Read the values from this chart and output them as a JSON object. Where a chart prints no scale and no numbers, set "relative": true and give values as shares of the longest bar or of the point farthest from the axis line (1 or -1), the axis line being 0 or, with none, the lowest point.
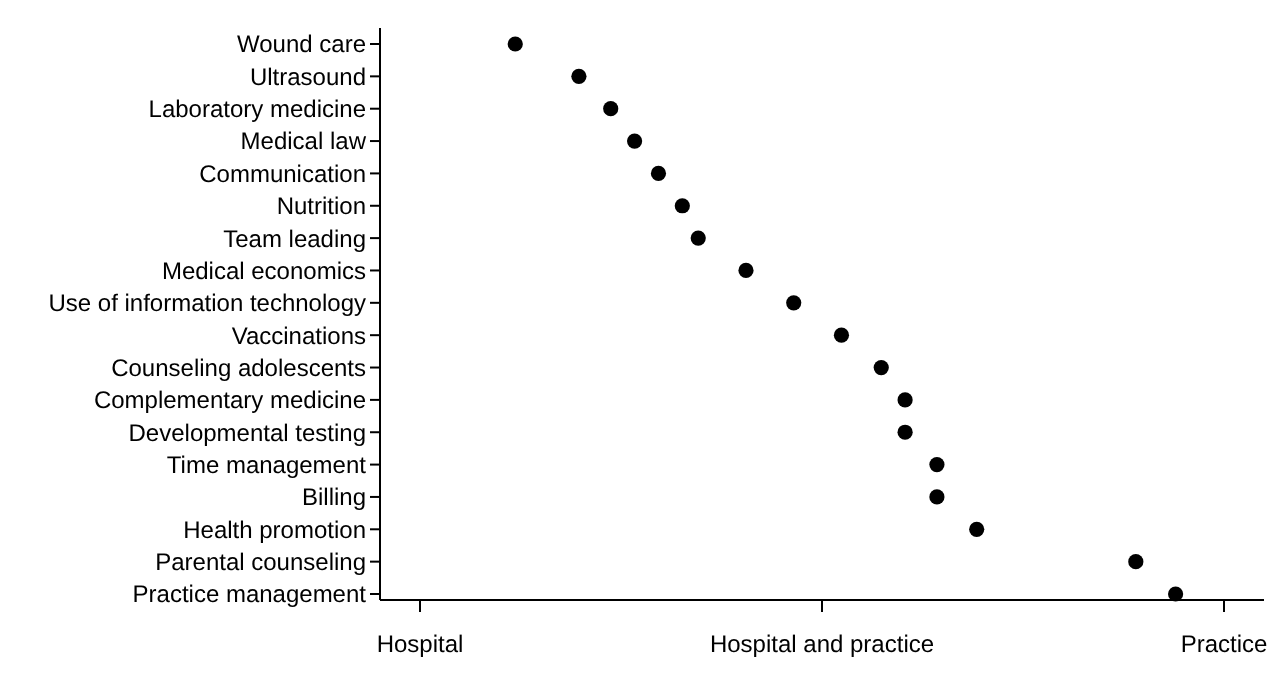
{
  "chart_data": {
    "type": "scatter",
    "orientation": "horizontal",
    "relative": true,
    "categories": [
      "Wound care",
      "Ultrasound",
      "Laboratory medicine",
      "Medical law",
      "Communication",
      "Nutrition",
      "Team leading",
      "Medical economics",
      "Use of information technology",
      "Vaccinations",
      "Counseling adolescents",
      "Complementary medicine",
      "Developmental testing",
      "Time management",
      "Billing",
      "Health promotion",
      "Parental counseling",
      "Practice management"
    ],
    "series": [
      {
        "color": "#000000",
        "values": [
          0.17,
          0.25,
          0.29,
          0.32,
          0.35,
          0.38,
          0.4,
          0.46,
          0.52,
          0.58,
          0.63,
          0.66,
          0.66,
          0.7,
          0.7,
          0.75,
          0.95,
          1
        ]
      }
    ],
    "annotations": [
      "Hospital",
      "Hospital and practice",
      "Practice"
    ],
    "marker": "circle"
  }
}
